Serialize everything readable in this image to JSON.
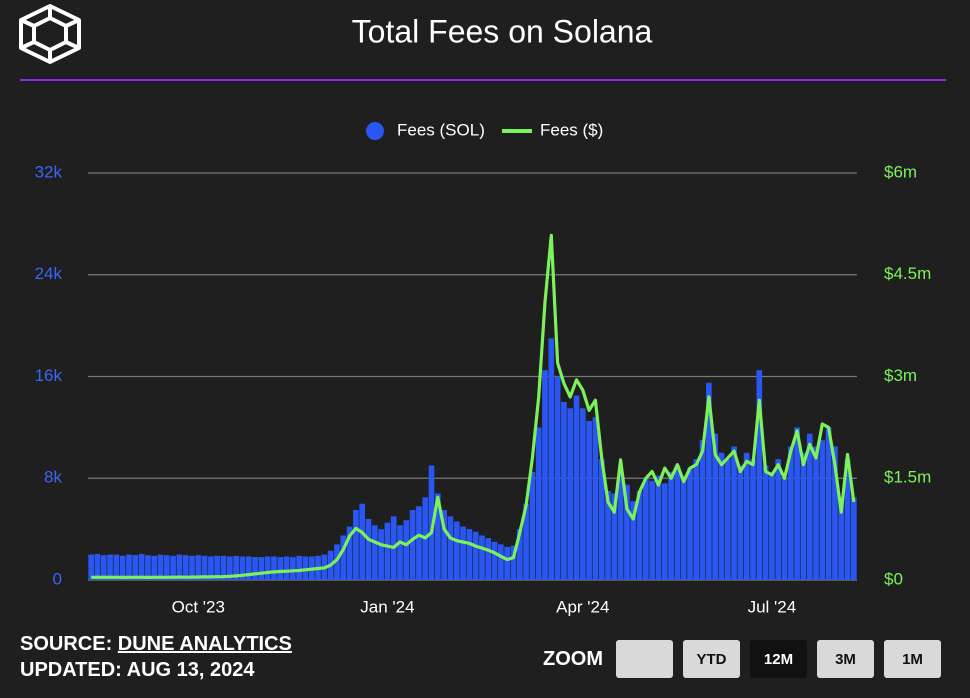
{
  "chart_data": {
    "type": "combo",
    "title": "Total Fees on Solana",
    "grid": true,
    "categories": [
      null,
      null,
      null,
      null,
      null,
      null,
      null,
      null,
      null,
      null,
      null,
      null,
      null,
      null,
      null,
      null,
      null,
      "Oct '23",
      null,
      null,
      null,
      null,
      null,
      null,
      null,
      null,
      null,
      null,
      null,
      null,
      null,
      null,
      null,
      null,
      null,
      null,
      null,
      null,
      null,
      null,
      null,
      null,
      null,
      null,
      null,
      null,
      null,
      "Jan '24",
      null,
      null,
      null,
      null,
      null,
      null,
      null,
      null,
      null,
      null,
      null,
      null,
      null,
      null,
      null,
      null,
      null,
      null,
      null,
      null,
      null,
      null,
      null,
      null,
      null,
      null,
      null,
      null,
      null,
      null,
      "Apr '24",
      null,
      null,
      null,
      null,
      null,
      null,
      null,
      null,
      null,
      null,
      null,
      null,
      null,
      null,
      null,
      null,
      null,
      null,
      null,
      null,
      null,
      null,
      null,
      null,
      null,
      null,
      null,
      null,
      null,
      "Jul '24",
      null,
      null,
      null,
      null,
      null,
      null,
      null,
      null,
      null,
      null,
      null,
      null,
      null
    ],
    "series": [
      {
        "name": "Fees (SOL)",
        "type": "bar",
        "color": "#2a56f2",
        "values": [
          2000,
          2050,
          1950,
          2000,
          2000,
          1900,
          2000,
          1950,
          2050,
          1950,
          1900,
          2000,
          1950,
          1900,
          2000,
          1950,
          1900,
          1950,
          1900,
          1850,
          1900,
          1900,
          1850,
          1900,
          1850,
          1850,
          1800,
          1800,
          1850,
          1850,
          1800,
          1850,
          1800,
          1900,
          1850,
          1850,
          1900,
          2000,
          2300,
          2800,
          3500,
          4200,
          5500,
          6000,
          4800,
          4300,
          4000,
          4500,
          5000,
          4300,
          4700,
          5500,
          5800,
          6500,
          9000,
          6800,
          5500,
          5000,
          4600,
          4200,
          4000,
          3800,
          3500,
          3300,
          3000,
          2800,
          2600,
          2700,
          4000,
          6000,
          8500,
          12000,
          16500,
          19000,
          16000,
          14000,
          13500,
          14500,
          13500,
          12500,
          12800,
          9500,
          7000,
          6800,
          8500,
          7500,
          6200,
          7000,
          8000,
          7800,
          8200,
          7600,
          8500,
          9000,
          8200,
          8800,
          9500,
          11000,
          15500,
          11500,
          10000,
          9500,
          10500,
          9000,
          10000,
          9500,
          16500,
          9000,
          8500,
          9500,
          8000,
          10500,
          12000,
          10000,
          11500,
          10500,
          11000,
          12000,
          10500,
          6500,
          9500,
          6500
        ]
      },
      {
        "name": "Fees ($)",
        "type": "line",
        "axis": "y2",
        "color": "#7cf25a",
        "values": [
          40000,
          42000,
          40000,
          41000,
          40000,
          39000,
          40000,
          40000,
          41000,
          39000,
          40000,
          41000,
          40000,
          42000,
          43000,
          42000,
          43000,
          44000,
          45000,
          46000,
          48000,
          50000,
          55000,
          60000,
          70000,
          80000,
          90000,
          100000,
          110000,
          120000,
          125000,
          130000,
          135000,
          140000,
          150000,
          160000,
          170000,
          180000,
          220000,
          300000,
          450000,
          650000,
          760000,
          700000,
          600000,
          560000,
          520000,
          500000,
          480000,
          560000,
          520000,
          600000,
          660000,
          620000,
          700000,
          1220000,
          750000,
          620000,
          580000,
          560000,
          540000,
          500000,
          470000,
          440000,
          400000,
          350000,
          300000,
          330000,
          700000,
          1100000,
          1800000,
          2700000,
          4100000,
          5080000,
          3200000,
          2900000,
          2700000,
          2950000,
          2800000,
          2500000,
          2650000,
          1800000,
          1150000,
          1000000,
          1770000,
          1050000,
          900000,
          1300000,
          1500000,
          1600000,
          1400000,
          1650000,
          1500000,
          1700000,
          1450000,
          1650000,
          1700000,
          1900000,
          2700000,
          1850000,
          1700000,
          1800000,
          1900000,
          1600000,
          1750000,
          1700000,
          2650000,
          1600000,
          1550000,
          1700000,
          1500000,
          1900000,
          2200000,
          1700000,
          2000000,
          1800000,
          2300000,
          2250000,
          1700000,
          1000000,
          1850000,
          1150000
        ]
      }
    ],
    "ylim": [
      0,
      32000
    ],
    "yticks": [
      0,
      {
        "value": 8000,
        "label": "8k"
      },
      {
        "value": 16000,
        "label": "16k"
      },
      {
        "value": 24000,
        "label": "24k"
      },
      {
        "value": 32000,
        "label": "32k"
      }
    ],
    "y2lim": [
      0,
      6000000
    ],
    "y2ticks": [
      {
        "value": 0,
        "label": "$0"
      },
      {
        "value": 1500000,
        "label": "$1.5m"
      },
      {
        "value": 3000000,
        "label": "$3m"
      },
      {
        "value": 4500000,
        "label": "$4.5m"
      },
      {
        "value": 6000000,
        "label": "$6m"
      }
    ]
  },
  "source": {
    "label": "SOURCE:",
    "link": "DUNE ANALYTICS"
  },
  "updated": "UPDATED: AUG 13, 2024",
  "zoom": {
    "label": "ZOOM",
    "buttons": [
      "YTD",
      "12M",
      "3M",
      "1M"
    ]
  }
}
